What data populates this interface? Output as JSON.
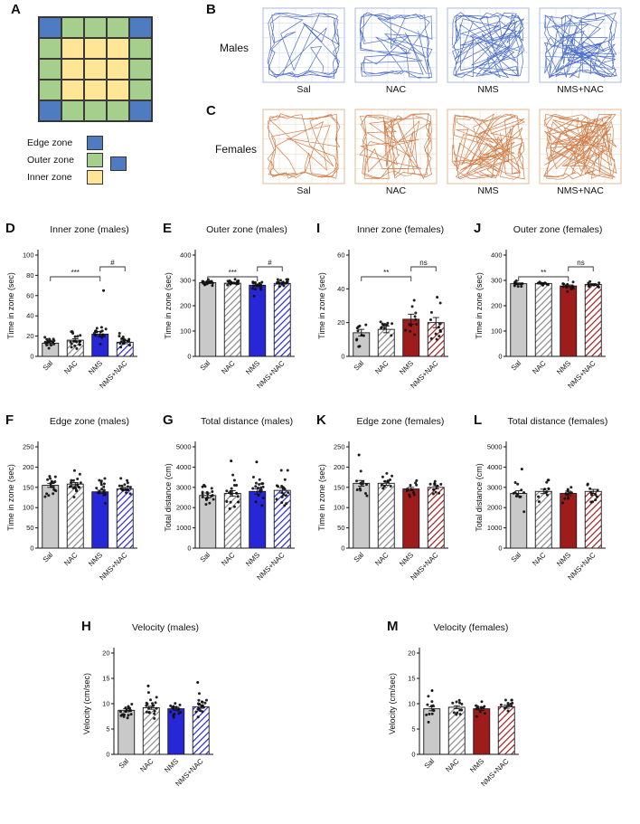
{
  "panelA": {
    "letter": "A",
    "grid": [
      "BGGGB",
      "GYYYG",
      "GYYYG",
      "GYYYG",
      "BGGGB"
    ],
    "colors": {
      "edge": "#4f7cc0",
      "outer": "#a6cf8d",
      "inner": "#ffe596",
      "border": "#3a3a3a"
    },
    "legend": [
      {
        "label": "Edge zone",
        "swatch": "edge"
      },
      {
        "label": "Outer zone",
        "swatch": "outer"
      },
      {
        "label": "Inner zone",
        "swatch": "inner"
      }
    ]
  },
  "trajectories": {
    "groups": [
      "Sal",
      "NAC",
      "NMS",
      "NMS+NAC"
    ],
    "rows": [
      {
        "letter": "B",
        "label": "Males",
        "color": "#3a5ec6",
        "frame": "#a9b9e2"
      },
      {
        "letter": "C",
        "label": "Females",
        "color": "#cd6f33",
        "frame": "#e3b896"
      }
    ]
  },
  "colors": {
    "gray": "#c9c9c9",
    "gray_stripe": "#8a8a8a",
    "blue": "#2727d8",
    "red": "#9e1c1c",
    "bar_border": "#1a1a1a",
    "point": "#111111"
  },
  "chart_data": [
    {
      "type": "bar",
      "letter": "D",
      "title": "Inner zone (males)",
      "ylabel": "Time in zone (sec)",
      "ylim": [
        0,
        100
      ],
      "yticks": [
        0,
        20,
        40,
        60,
        80,
        100
      ],
      "categories": [
        "Sal",
        "NAC",
        "NMS",
        "NMS+NAC"
      ],
      "values": [
        13,
        16,
        22,
        14
      ],
      "sem": [
        1.5,
        1.5,
        2.5,
        1.5
      ],
      "n": [
        18,
        18,
        18,
        18
      ],
      "sd": [
        4,
        5,
        6,
        4
      ],
      "outliers": [
        [],
        [],
        [
          65
        ],
        []
      ],
      "styles": [
        "gray-solid",
        "gray-hatch",
        "blue-solid",
        "blue-hatch"
      ],
      "significance": [
        {
          "groups": [
            0,
            2
          ],
          "label": "***"
        },
        {
          "groups": [
            2,
            3
          ],
          "label": "#"
        }
      ]
    },
    {
      "type": "bar",
      "letter": "E",
      "title": "Outer zone (males)",
      "ylabel": "Time in zone (sec)",
      "ylim": [
        0,
        400
      ],
      "yticks": [
        0,
        100,
        200,
        300,
        400
      ],
      "categories": [
        "Sal",
        "NAC",
        "NMS",
        "NMS+NAC"
      ],
      "values": [
        291,
        289,
        281,
        288
      ],
      "sem": [
        3,
        3,
        5,
        3
      ],
      "n": [
        18,
        18,
        18,
        18
      ],
      "sd": [
        7,
        7,
        12,
        7
      ],
      "outliers": [
        [],
        [],
        [
          238
        ],
        []
      ],
      "styles": [
        "gray-solid",
        "gray-hatch",
        "blue-solid",
        "blue-hatch"
      ],
      "significance": [
        {
          "groups": [
            0,
            2
          ],
          "label": "***"
        },
        {
          "groups": [
            2,
            3
          ],
          "label": "#"
        }
      ]
    },
    {
      "type": "bar",
      "letter": "I",
      "title": "Inner zone (females)",
      "ylabel": "Time in zone (sec)",
      "ylim": [
        0,
        60
      ],
      "yticks": [
        0,
        20,
        40,
        60
      ],
      "categories": [
        "Sal",
        "NAC",
        "NMS",
        "NMS+NAC"
      ],
      "values": [
        14,
        16,
        22,
        20
      ],
      "sem": [
        2,
        2,
        3,
        3
      ],
      "n": [
        11,
        11,
        11,
        11
      ],
      "sd": [
        5,
        5,
        7,
        7
      ],
      "outliers": [
        [],
        [],
        [],
        [
          35
        ]
      ],
      "styles": [
        "gray-solid",
        "gray-hatch",
        "red-solid",
        "red-hatch"
      ],
      "significance": [
        {
          "groups": [
            0,
            2
          ],
          "label": "**"
        },
        {
          "groups": [
            2,
            3
          ],
          "label": "ns"
        }
      ]
    },
    {
      "type": "bar",
      "letter": "J",
      "title": "Outer zone (females)",
      "ylabel": "Time in zone (sec)",
      "ylim": [
        0,
        400
      ],
      "yticks": [
        0,
        100,
        200,
        300,
        400
      ],
      "categories": [
        "Sal",
        "NAC",
        "NMS",
        "NMS+NAC"
      ],
      "values": [
        287,
        288,
        278,
        284
      ],
      "sem": [
        3,
        3,
        4,
        3
      ],
      "n": [
        11,
        11,
        11,
        11
      ],
      "sd": [
        7,
        7,
        9,
        8
      ],
      "outliers": [
        [],
        [],
        [
          256
        ],
        []
      ],
      "styles": [
        "gray-solid",
        "gray-hatch",
        "red-solid",
        "red-hatch"
      ],
      "significance": [
        {
          "groups": [
            0,
            2
          ],
          "label": "**"
        },
        {
          "groups": [
            2,
            3
          ],
          "label": "ns"
        }
      ]
    },
    {
      "type": "bar",
      "letter": "F",
      "title": "Edge zone (males)",
      "ylabel": "Time in zone (sec)",
      "ylim": [
        0,
        250
      ],
      "yticks": [
        0,
        50,
        100,
        150,
        200,
        250
      ],
      "categories": [
        "Sal",
        "NAC",
        "NMS",
        "NMS+NAC"
      ],
      "values": [
        155,
        158,
        139,
        146
      ],
      "sem": [
        5,
        4,
        4,
        4
      ],
      "n": [
        18,
        18,
        18,
        18
      ],
      "sd": [
        17,
        17,
        15,
        13
      ],
      "outliers": [
        [],
        [],
        [],
        []
      ],
      "styles": [
        "gray-solid",
        "gray-hatch",
        "blue-solid",
        "blue-hatch"
      ],
      "significance": []
    },
    {
      "type": "bar",
      "letter": "G",
      "title": "Total distance (males)",
      "ylabel": "Total distance (cm)",
      "ylim": [
        0,
        5000
      ],
      "yticks": [
        0,
        1000,
        2000,
        3000,
        4000,
        5000
      ],
      "categories": [
        "Sal",
        "NAC",
        "NMS",
        "NMS+NAC"
      ],
      "values": [
        2600,
        2700,
        2800,
        2850
      ],
      "sem": [
        120,
        140,
        130,
        130
      ],
      "n": [
        18,
        18,
        18,
        18
      ],
      "sd": [
        420,
        520,
        480,
        450
      ],
      "outliers": [
        [],
        [
          4300
        ],
        [
          4250
        ],
        []
      ],
      "styles": [
        "gray-solid",
        "gray-hatch",
        "blue-solid",
        "blue-hatch"
      ],
      "significance": []
    },
    {
      "type": "bar",
      "letter": "K",
      "title": "Edge zone (females)",
      "ylabel": "Time in zone (sec)",
      "ylim": [
        0,
        250
      ],
      "yticks": [
        0,
        50,
        100,
        150,
        200,
        250
      ],
      "categories": [
        "Sal",
        "NAC",
        "NMS",
        "NMS+NAC"
      ],
      "values": [
        160,
        160,
        146,
        150
      ],
      "sem": [
        7,
        5,
        4,
        4
      ],
      "n": [
        11,
        11,
        11,
        11
      ],
      "sd": [
        20,
        16,
        13,
        13
      ],
      "outliers": [
        [
          230
        ],
        [],
        [],
        []
      ],
      "styles": [
        "gray-solid",
        "gray-hatch",
        "red-solid",
        "red-hatch"
      ],
      "significance": []
    },
    {
      "type": "bar",
      "letter": "L",
      "title": "Total distance (females)",
      "ylabel": "Total distance (cm)",
      "ylim": [
        0,
        5000
      ],
      "yticks": [
        0,
        1000,
        2000,
        3000,
        4000,
        5000
      ],
      "categories": [
        "Sal",
        "NAC",
        "NMS",
        "NMS+NAC"
      ],
      "values": [
        2700,
        2800,
        2700,
        2800
      ],
      "sem": [
        130,
        110,
        110,
        100
      ],
      "n": [
        11,
        11,
        11,
        11
      ],
      "sd": [
        420,
        360,
        340,
        320
      ],
      "outliers": [
        [
          3900
        ],
        [],
        [],
        []
      ],
      "styles": [
        "gray-solid",
        "gray-hatch",
        "red-solid",
        "red-hatch"
      ],
      "significance": []
    },
    {
      "type": "bar",
      "letter": "H",
      "title": "Velocity (males)",
      "ylabel": "Velocity (cm/sec)",
      "ylim": [
        0,
        20
      ],
      "yticks": [
        0,
        5,
        10,
        15,
        20
      ],
      "categories": [
        "Sal",
        "NAC",
        "NMS",
        "NMS+NAC"
      ],
      "values": [
        8.7,
        9.2,
        9.0,
        9.4
      ],
      "sem": [
        0.3,
        0.3,
        0.3,
        0.3
      ],
      "n": [
        18,
        18,
        18,
        18
      ],
      "sd": [
        1.1,
        1.4,
        1.2,
        1.4
      ],
      "outliers": [
        [],
        [
          13.5
        ],
        [],
        [
          14.2
        ]
      ],
      "styles": [
        "gray-solid",
        "gray-hatch",
        "blue-solid",
        "blue-hatch"
      ],
      "significance": []
    },
    {
      "type": "bar",
      "letter": "M",
      "title": "Velocity (females)",
      "ylabel": "Velocity (cm/sec)",
      "ylim": [
        0,
        20
      ],
      "yticks": [
        0,
        5,
        10,
        15,
        20
      ],
      "categories": [
        "Sal",
        "NAC",
        "NMS",
        "NMS+NAC"
      ],
      "values": [
        9.0,
        9.3,
        9.0,
        9.4
      ],
      "sem": [
        0.4,
        0.3,
        0.3,
        0.3
      ],
      "n": [
        11,
        11,
        11,
        11
      ],
      "sd": [
        1.2,
        1.0,
        0.9,
        1.0
      ],
      "outliers": [
        [
          12.6
        ],
        [],
        [],
        []
      ],
      "styles": [
        "gray-solid",
        "gray-hatch",
        "red-solid",
        "red-hatch"
      ],
      "significance": []
    }
  ]
}
